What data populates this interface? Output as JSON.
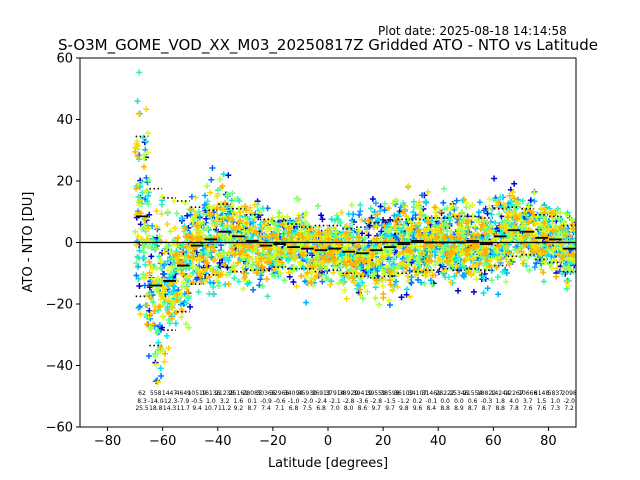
{
  "chart_data": {
    "type": "scatter",
    "title": "S-O3M_GOME_VOD_XX_M03_20250817Z Gridded ATO - NTO vs Latitude",
    "plot_date": "Plot date: 2025-08-18 14:14:58",
    "xlabel": "Latitude [degrees]",
    "ylabel": "ATO - NTO [DU]",
    "xlim": [
      -90,
      90
    ],
    "ylim": [
      -60,
      60
    ],
    "xticks": [
      -80,
      -60,
      -40,
      -20,
      0,
      20,
      40,
      60,
      80
    ],
    "yticks": [
      -60,
      -40,
      -20,
      0,
      20,
      40,
      60
    ],
    "zero_line": 0,
    "grid": false,
    "bins": [
      {
        "lat": -67.5,
        "median": 8.5,
        "p_hi": 34.5,
        "p_lo": -17.5,
        "count": "62",
        "mean": "8.3",
        "std": "25.5"
      },
      {
        "lat": -62.5,
        "median": -14.0,
        "p_hi": 17.5,
        "p_lo": -33.5,
        "count": "558",
        "mean": "-14.0",
        "std": "18.8"
      },
      {
        "lat": -57.5,
        "median": -12.5,
        "p_hi": 14.5,
        "p_lo": -28.5,
        "count": "1447",
        "mean": "-12.3",
        "std": "14.3"
      },
      {
        "lat": -52.5,
        "median": -7.5,
        "p_hi": 13.5,
        "p_lo": -22.5,
        "count": "4649",
        "mean": "-7.9",
        "std": "11.7"
      },
      {
        "lat": -47.5,
        "median": -1.0,
        "p_hi": 11.5,
        "p_lo": -13.5,
        "count": "10519",
        "mean": "-0.5",
        "std": "9.4"
      },
      {
        "lat": -42.5,
        "median": 1.0,
        "p_hi": 10.5,
        "p_lo": -10.5,
        "count": "16136",
        "mean": "1.0",
        "std": "10.7"
      },
      {
        "lat": -37.5,
        "median": 3.5,
        "p_hi": 12.5,
        "p_lo": -8.0,
        "count": "21238",
        "mean": "3.2",
        "std": "11.2"
      },
      {
        "lat": -32.5,
        "median": 2.0,
        "p_hi": 11.0,
        "p_lo": -9.5,
        "count": "25161",
        "mean": "1.6",
        "std": "9.2"
      },
      {
        "lat": -27.5,
        "median": 0.5,
        "p_hi": 9.0,
        "p_lo": -9.0,
        "count": "28085",
        "mean": "0.1",
        "std": "8.7"
      },
      {
        "lat": -22.5,
        "median": -1.0,
        "p_hi": 7.5,
        "p_lo": -9.0,
        "count": "30366",
        "mean": "-0.9",
        "std": "7.4"
      },
      {
        "lat": -17.5,
        "median": -0.5,
        "p_hi": 7.0,
        "p_lo": -8.0,
        "count": "32966",
        "mean": "-0.6",
        "std": "7.1"
      },
      {
        "lat": -12.5,
        "median": -1.5,
        "p_hi": 6.0,
        "p_lo": -8.5,
        "count": "34094",
        "mean": "-1.0",
        "std": "6.8"
      },
      {
        "lat": -7.5,
        "median": -2.0,
        "p_hi": 5.0,
        "p_lo": -8.5,
        "count": "35930",
        "mean": "-2.0",
        "std": "7.5"
      },
      {
        "lat": -2.5,
        "median": -2.5,
        "p_hi": 5.5,
        "p_lo": -9.5,
        "count": "36913",
        "mean": "-2.4",
        "std": "6.8"
      },
      {
        "lat": 2.5,
        "median": -2.0,
        "p_hi": 5.5,
        "p_lo": -9.0,
        "count": "37914",
        "mean": "-2.1",
        "std": "7.0"
      },
      {
        "lat": 7.5,
        "median": -3.0,
        "p_hi": 4.5,
        "p_lo": -10.0,
        "count": "38929",
        "mean": "-2.8",
        "std": "8.0"
      },
      {
        "lat": 12.5,
        "median": -3.5,
        "p_hi": 5.0,
        "p_lo": -11.0,
        "count": "39419",
        "mean": "-3.6",
        "std": "8.6"
      },
      {
        "lat": 17.5,
        "median": -2.5,
        "p_hi": 6.5,
        "p_lo": -11.5,
        "count": "39559",
        "mean": "-2.8",
        "std": "9.7"
      },
      {
        "lat": 22.5,
        "median": -1.5,
        "p_hi": 7.0,
        "p_lo": -11.0,
        "count": "38598",
        "mean": "-1.5",
        "std": "9.7"
      },
      {
        "lat": 27.5,
        "median": -0.5,
        "p_hi": 7.5,
        "p_lo": -10.0,
        "count": "36102",
        "mean": "-1.2",
        "std": "9.8"
      },
      {
        "lat": 32.5,
        "median": 0.5,
        "p_hi": 7.5,
        "p_lo": -9.5,
        "count": "34107",
        "mean": "0.2",
        "std": "9.6"
      },
      {
        "lat": 37.5,
        "median": 0.0,
        "p_hi": 8.0,
        "p_lo": -9.0,
        "count": "31461",
        "mean": "-0.1",
        "std": "8.4"
      },
      {
        "lat": 42.5,
        "median": 0.0,
        "p_hi": 8.0,
        "p_lo": -8.5,
        "count": "28222",
        "mean": "0.0",
        "std": "8.8"
      },
      {
        "lat": 47.5,
        "median": 0.0,
        "p_hi": 8.5,
        "p_lo": -9.0,
        "count": "25346",
        "mean": "0.0",
        "std": "8.9"
      },
      {
        "lat": 52.5,
        "median": 0.5,
        "p_hi": 8.5,
        "p_lo": -8.5,
        "count": "21554",
        "mean": "0.6",
        "std": "8.7"
      },
      {
        "lat": 57.5,
        "median": -0.5,
        "p_hi": 8.0,
        "p_lo": -9.0,
        "count": "18822",
        "mean": "-0.3",
        "std": "8.7"
      },
      {
        "lat": 62.5,
        "median": 2.0,
        "p_hi": 11.0,
        "p_lo": -7.5,
        "count": "14244",
        "mean": "1.8",
        "std": "8.8"
      },
      {
        "lat": 67.5,
        "median": 4.0,
        "p_hi": 11.5,
        "p_lo": -4.5,
        "count": "12267",
        "mean": "4.0",
        "std": "7.8"
      },
      {
        "lat": 72.5,
        "median": 3.5,
        "p_hi": 11.0,
        "p_lo": -4.0,
        "count": "10666",
        "mean": "3.7",
        "std": "7.6"
      },
      {
        "lat": 77.5,
        "median": 1.5,
        "p_hi": 9.0,
        "p_lo": -5.5,
        "count": "8148",
        "mean": "1.5",
        "std": "7.6"
      },
      {
        "lat": 82.5,
        "median": 1.0,
        "p_hi": 8.5,
        "p_lo": -6.5,
        "count": "5837",
        "mean": "1.0",
        "std": "7.3"
      },
      {
        "lat": 87.5,
        "median": -2.0,
        "p_hi": 5.5,
        "p_lo": -9.5,
        "count": "2098",
        "mean": "-2.0",
        "std": "7.2"
      }
    ],
    "scatter_colors": [
      "#0000cd",
      "#0070ff",
      "#00b0ff",
      "#00e5ee",
      "#30f0c0",
      "#6cff7a",
      "#b0ff40",
      "#d8ff20",
      "#ffd700",
      "#ffb000"
    ],
    "median_color": "#000000",
    "percentile_color": "#000000"
  }
}
